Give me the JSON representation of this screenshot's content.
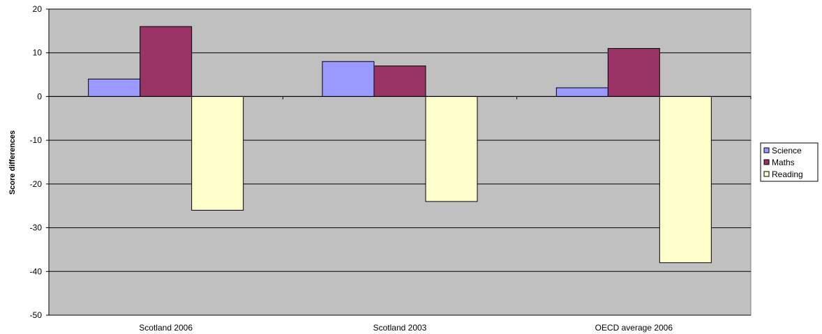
{
  "chart_data": {
    "type": "bar",
    "categories": [
      "Scotland 2006",
      "Scotland 2003",
      "OECD average 2006"
    ],
    "series": [
      {
        "name": "Science",
        "values": [
          4,
          8,
          2
        ],
        "color": "#9999ff"
      },
      {
        "name": "Maths",
        "values": [
          16,
          7,
          11
        ],
        "color": "#993366"
      },
      {
        "name": "Reading",
        "values": [
          -26,
          -24,
          -38
        ],
        "color": "#ffffcc"
      }
    ],
    "title": "",
    "xlabel": "",
    "ylabel": "Score differences",
    "ylim": [
      -50,
      20
    ],
    "yticks": [
      20,
      10,
      0,
      -10,
      -20,
      -30,
      -40,
      -50
    ],
    "grid": true,
    "plot_background": "#c0c0c0",
    "legend_position": "right"
  }
}
